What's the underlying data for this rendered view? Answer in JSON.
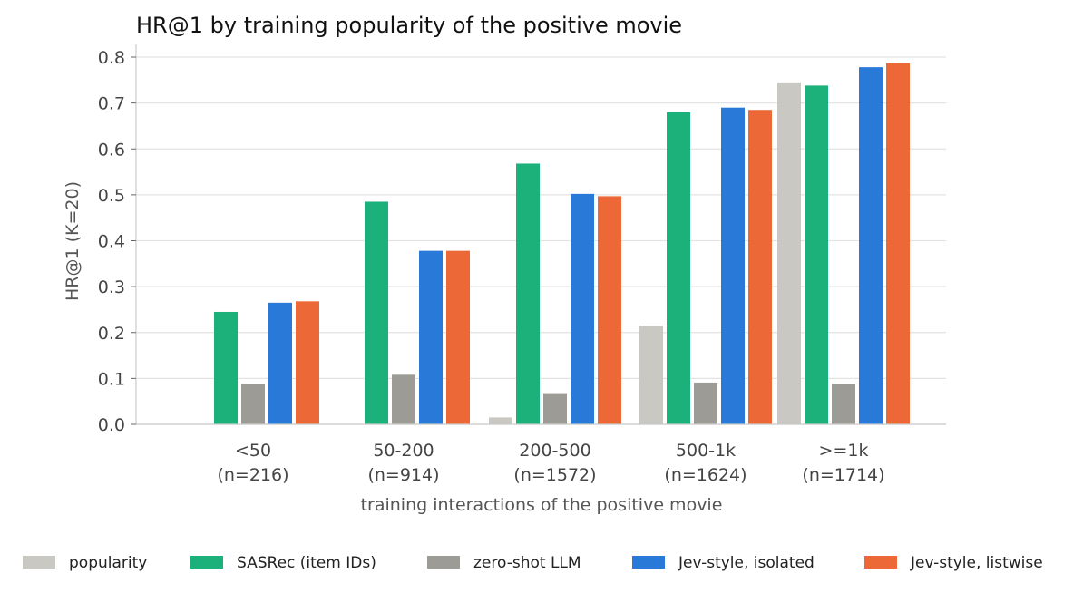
{
  "chart_data": {
    "type": "bar",
    "title": "HR@1 by training popularity of the positive movie",
    "xlabel": "training interactions of the positive movie",
    "ylabel": "HR@1 (K=20)",
    "ylim": [
      0,
      0.8
    ],
    "yticks": [
      "0.0",
      "0.1",
      "0.2",
      "0.3",
      "0.4",
      "0.5",
      "0.6",
      "0.7",
      "0.8"
    ],
    "grid": "horizontal",
    "legend_position": "bottom",
    "categories": [
      {
        "line1": "<50",
        "line2": "(n=216)"
      },
      {
        "line1": "50-200",
        "line2": "(n=914)"
      },
      {
        "line1": "200-500",
        "line2": "(n=1572)"
      },
      {
        "line1": "500-1k",
        "line2": "(n=1624)"
      },
      {
        "line1": ">=1k",
        "line2": "(n=1714)"
      }
    ],
    "series": [
      {
        "name": "popularity",
        "color": "#c9c8c2",
        "values": [
          0.0,
          0.0,
          0.015,
          0.215,
          0.745
        ]
      },
      {
        "name": "SASRec (item IDs)",
        "color": "#1cb07b",
        "values": [
          0.245,
          0.485,
          0.568,
          0.68,
          0.738
        ]
      },
      {
        "name": "zero-shot LLM",
        "color": "#9d9b95",
        "values": [
          0.088,
          0.108,
          0.068,
          0.091,
          0.088
        ]
      },
      {
        "name": "Jev-style, isolated",
        "color": "#2979d8",
        "values": [
          0.265,
          0.378,
          0.502,
          0.69,
          0.778
        ]
      },
      {
        "name": "Jev-style, listwise",
        "color": "#ec6836",
        "values": [
          0.268,
          0.378,
          0.497,
          0.685,
          0.787
        ]
      }
    ]
  }
}
